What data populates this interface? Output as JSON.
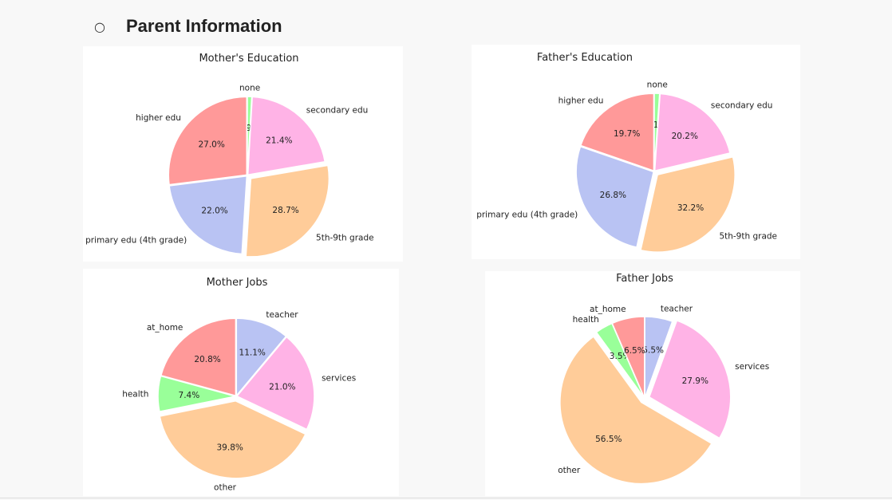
{
  "section": {
    "bullet": "○",
    "title": "Parent Information"
  },
  "colors": {
    "pink_red": "#ff9999",
    "green": "#99ff99",
    "magenta": "#ffb3e6",
    "orange": "#ffcc99",
    "blue": "#b9c3f3"
  },
  "chart_data": [
    {
      "type": "pie",
      "title": "Mother's Education",
      "slices": [
        {
          "label": "none",
          "value": 0.9,
          "pct_label": "0.9%",
          "color": "#99ff99",
          "explode": false
        },
        {
          "label": "secondary edu",
          "value": 21.4,
          "pct_label": "21.4%",
          "color": "#ffb3e6",
          "explode": false
        },
        {
          "label": "5th-9th grade",
          "value": 28.7,
          "pct_label": "28.7%",
          "color": "#ffcc99",
          "explode": true
        },
        {
          "label": "primary edu (4th grade)",
          "value": 22.0,
          "pct_label": "22.0%",
          "color": "#b9c3f3",
          "explode": false
        },
        {
          "label": "higher edu",
          "value": 27.0,
          "pct_label": "27.0%",
          "color": "#ff9999",
          "explode": false
        }
      ]
    },
    {
      "type": "pie",
      "title": "Father's Education",
      "slices": [
        {
          "label": "none",
          "value": 1.1,
          "pct_label": "1.1%",
          "color": "#99ff99",
          "explode": false
        },
        {
          "label": "secondary edu",
          "value": 20.2,
          "pct_label": "20.2%",
          "color": "#ffb3e6",
          "explode": false
        },
        {
          "label": "5th-9th grade",
          "value": 32.2,
          "pct_label": "32.2%",
          "color": "#ffcc99",
          "explode": true
        },
        {
          "label": "primary edu (4th grade)",
          "value": 26.8,
          "pct_label": "26.8%",
          "color": "#b9c3f3",
          "explode": false
        },
        {
          "label": "higher edu",
          "value": 19.7,
          "pct_label": "19.7%",
          "color": "#ff9999",
          "explode": false
        }
      ]
    },
    {
      "type": "pie",
      "title": "Mother Jobs",
      "slices": [
        {
          "label": "teacher",
          "value": 11.1,
          "pct_label": "11.1%",
          "color": "#b9c3f3",
          "explode": false
        },
        {
          "label": "services",
          "value": 21.0,
          "pct_label": "21.0%",
          "color": "#ffb3e6",
          "explode": false
        },
        {
          "label": "other",
          "value": 39.8,
          "pct_label": "39.8%",
          "color": "#ffcc99",
          "explode": true
        },
        {
          "label": "health",
          "value": 7.4,
          "pct_label": "7.4%",
          "color": "#99ff99",
          "explode": false
        },
        {
          "label": "at_home",
          "value": 20.8,
          "pct_label": "20.8%",
          "color": "#ff9999",
          "explode": false
        }
      ]
    },
    {
      "type": "pie",
      "title": "Father Jobs",
      "slices": [
        {
          "label": "teacher",
          "value": 5.5,
          "pct_label": "5.5%",
          "color": "#b9c3f3",
          "explode": false
        },
        {
          "label": "services",
          "value": 27.9,
          "pct_label": "27.9%",
          "color": "#ffb3e6",
          "explode": true
        },
        {
          "label": "other",
          "value": 56.5,
          "pct_label": "56.5%",
          "color": "#ffcc99",
          "explode": true
        },
        {
          "label": "health",
          "value": 3.5,
          "pct_label": "3.5%",
          "color": "#99ff99",
          "explode": false
        },
        {
          "label": "at_home",
          "value": 6.5,
          "pct_label": "6.5%",
          "color": "#ff9999",
          "explode": false
        }
      ]
    }
  ]
}
